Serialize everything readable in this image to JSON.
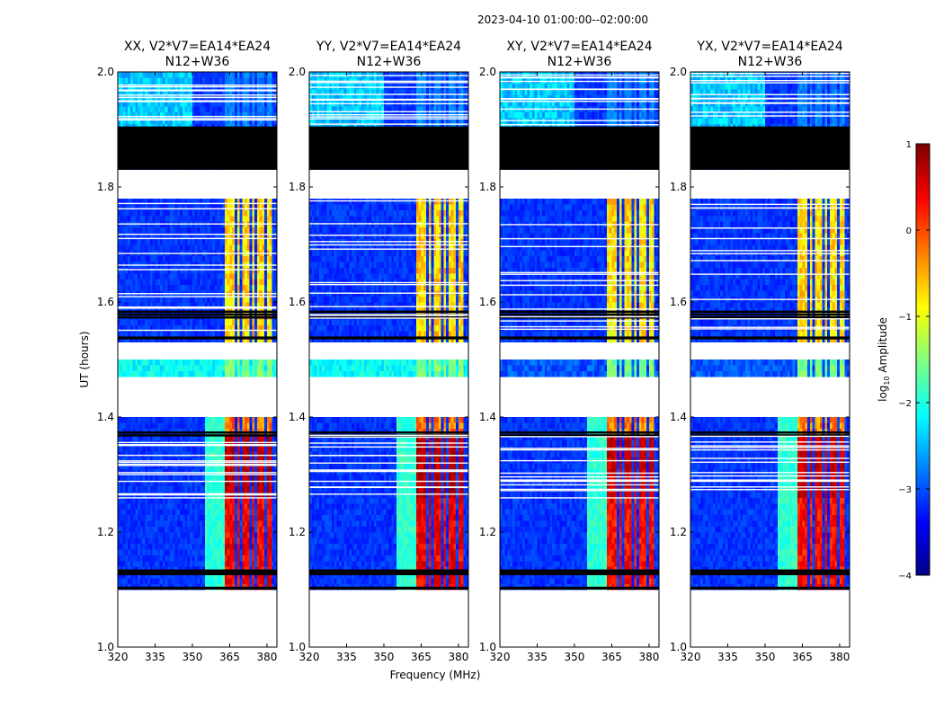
{
  "figure": {
    "suptitle": "2023-04-10  01:00:00--02:00:00",
    "ylabel": "UT (hours)",
    "xlabel": "Frequency (MHz)"
  },
  "chart_data": {
    "type": "heatmap",
    "xlim": [
      320,
      384
    ],
    "ylim": [
      1.0,
      2.0
    ],
    "xticks": [
      "320",
      "335",
      "350",
      "365",
      "380"
    ],
    "yticks": [
      "1.0",
      "1.2",
      "1.4",
      "1.6",
      "1.8",
      "2.0"
    ],
    "panels": [
      {
        "title1": "XX, V2*V7=EA14*EA24",
        "title2": "N12+W36",
        "strength": 1.0
      },
      {
        "title1": "YY, V2*V7=EA14*EA24",
        "title2": "N12+W36",
        "strength": 1.05
      },
      {
        "title1": "XY, V2*V7=EA14*EA24",
        "title2": "N12+W36",
        "strength": 0.85
      },
      {
        "title1": "YX, V2*V7=EA14*EA24",
        "title2": "N12+W36",
        "strength": 0.85
      }
    ],
    "rfi_channels_mhz": [
      [
        363,
        367
      ],
      [
        368,
        369
      ],
      [
        370,
        373
      ],
      [
        374,
        375
      ],
      [
        376,
        379
      ],
      [
        380,
        382
      ]
    ],
    "flagged_time_ranges": [
      {
        "from": 1.0,
        "to": 1.1,
        "state": "blank"
      },
      {
        "from": 1.1,
        "to": 1.105,
        "state": "flagged"
      },
      {
        "from": 1.125,
        "to": 1.135,
        "state": "flagged"
      },
      {
        "from": 1.4,
        "to": 1.47,
        "state": "blank"
      },
      {
        "from": 1.5,
        "to": 1.53,
        "state": "blank"
      },
      {
        "from": 1.535,
        "to": 1.54,
        "state": "flagged"
      },
      {
        "from": 1.78,
        "to": 1.83,
        "state": "blank"
      },
      {
        "from": 1.83,
        "to": 1.905,
        "state": "flagged"
      }
    ],
    "colorbar": {
      "label_main": "log",
      "label_sub": "10",
      "label_rest": " Amplitude",
      "ticks": [
        "1",
        "0",
        "−1",
        "−2",
        "−3",
        "−4"
      ],
      "range": [
        -4,
        1
      ],
      "colormap": "jet"
    }
  }
}
